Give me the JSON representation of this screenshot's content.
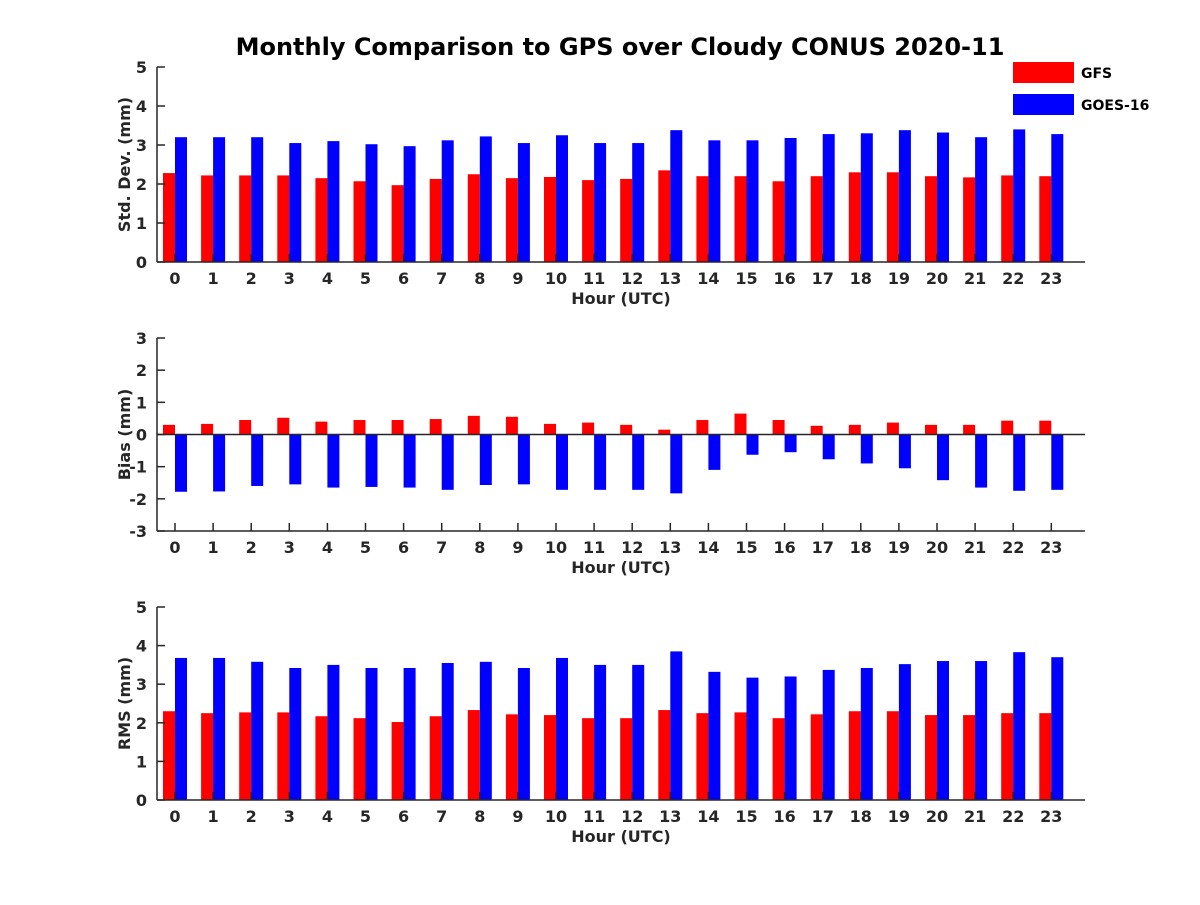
{
  "title": "Monthly Comparison to GPS over Cloudy CONUS 2020-11",
  "legend": [
    {
      "label": "GFS",
      "color": "#ff0000"
    },
    {
      "label": "GOES-16",
      "color": "#0000ff"
    }
  ],
  "chart_data": [
    {
      "type": "bar",
      "ylabel": "Std. Dev. (mm)",
      "xlabel": "Hour (UTC)",
      "ylim": [
        0,
        5
      ],
      "yticks": [
        0,
        1,
        2,
        3,
        4,
        5
      ],
      "categories": [
        "0",
        "1",
        "2",
        "3",
        "4",
        "5",
        "6",
        "7",
        "8",
        "9",
        "10",
        "11",
        "12",
        "13",
        "14",
        "15",
        "16",
        "17",
        "18",
        "19",
        "20",
        "21",
        "22",
        "23"
      ],
      "series": [
        {
          "name": "GFS",
          "color": "#ff0000",
          "values": [
            2.28,
            2.22,
            2.22,
            2.22,
            2.15,
            2.07,
            1.97,
            2.13,
            2.25,
            2.15,
            2.18,
            2.1,
            2.13,
            2.35,
            2.2,
            2.2,
            2.07,
            2.2,
            2.3,
            2.3,
            2.2,
            2.17,
            2.22,
            2.2
          ]
        },
        {
          "name": "GOES-16",
          "color": "#0000ff",
          "values": [
            3.2,
            3.2,
            3.2,
            3.05,
            3.1,
            3.02,
            2.97,
            3.12,
            3.22,
            3.05,
            3.25,
            3.05,
            3.05,
            3.38,
            3.12,
            3.12,
            3.18,
            3.28,
            3.3,
            3.38,
            3.32,
            3.2,
            3.4,
            3.28
          ]
        }
      ]
    },
    {
      "type": "bar",
      "ylabel": "Bias (mm)",
      "xlabel": "Hour (UTC)",
      "ylim": [
        -3,
        3
      ],
      "yticks": [
        -3,
        -2,
        -1,
        0,
        1,
        2,
        3
      ],
      "categories": [
        "0",
        "1",
        "2",
        "3",
        "4",
        "5",
        "6",
        "7",
        "8",
        "9",
        "10",
        "11",
        "12",
        "13",
        "14",
        "15",
        "16",
        "17",
        "18",
        "19",
        "20",
        "21",
        "22",
        "23"
      ],
      "series": [
        {
          "name": "GFS",
          "color": "#ff0000",
          "values": [
            0.3,
            0.33,
            0.45,
            0.52,
            0.4,
            0.45,
            0.45,
            0.48,
            0.58,
            0.55,
            0.33,
            0.37,
            0.3,
            0.15,
            0.45,
            0.65,
            0.45,
            0.27,
            0.3,
            0.37,
            0.3,
            0.3,
            0.43,
            0.43
          ]
        },
        {
          "name": "GOES-16",
          "color": "#0000ff",
          "values": [
            -1.78,
            -1.77,
            -1.6,
            -1.55,
            -1.65,
            -1.63,
            -1.65,
            -1.72,
            -1.57,
            -1.55,
            -1.72,
            -1.72,
            -1.72,
            -1.83,
            -1.1,
            -0.63,
            -0.55,
            -0.77,
            -0.9,
            -1.05,
            -1.42,
            -1.65,
            -1.75,
            -1.72
          ]
        }
      ]
    },
    {
      "type": "bar",
      "ylabel": "RMS (mm)",
      "xlabel": "Hour (UTC)",
      "ylim": [
        0,
        5
      ],
      "yticks": [
        0,
        1,
        2,
        3,
        4,
        5
      ],
      "categories": [
        "0",
        "1",
        "2",
        "3",
        "4",
        "5",
        "6",
        "7",
        "8",
        "9",
        "10",
        "11",
        "12",
        "13",
        "14",
        "15",
        "16",
        "17",
        "18",
        "19",
        "20",
        "21",
        "22",
        "23"
      ],
      "series": [
        {
          "name": "GFS",
          "color": "#ff0000",
          "values": [
            2.3,
            2.25,
            2.27,
            2.27,
            2.17,
            2.12,
            2.02,
            2.17,
            2.33,
            2.22,
            2.2,
            2.12,
            2.12,
            2.33,
            2.25,
            2.27,
            2.12,
            2.22,
            2.3,
            2.3,
            2.2,
            2.2,
            2.25,
            2.25
          ]
        },
        {
          "name": "GOES-16",
          "color": "#0000ff",
          "values": [
            3.68,
            3.68,
            3.58,
            3.42,
            3.5,
            3.42,
            3.42,
            3.55,
            3.58,
            3.42,
            3.68,
            3.5,
            3.5,
            3.85,
            3.32,
            3.17,
            3.2,
            3.37,
            3.42,
            3.52,
            3.6,
            3.6,
            3.83,
            3.7
          ]
        }
      ]
    }
  ]
}
